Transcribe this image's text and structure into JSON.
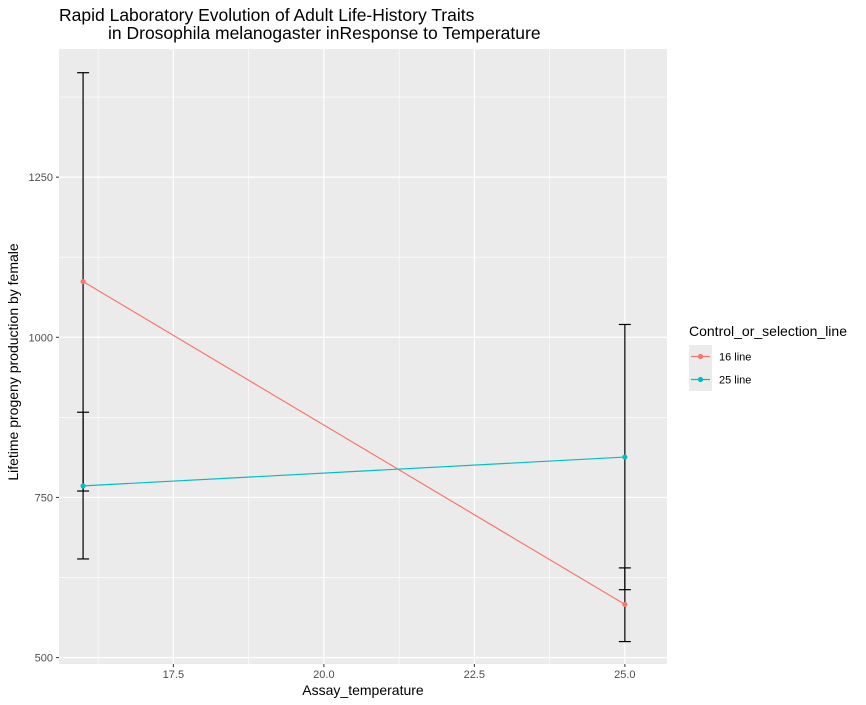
{
  "chart_data": {
    "type": "line",
    "title_lines": [
      "Rapid Laboratory Evolution of Adult Life-History Traits",
      "in Drosophila melanogaster inResponse to Temperature"
    ],
    "xlabel": "Assay_temperature",
    "ylabel": "Lifetime progeny  production by female",
    "xlim": [
      15.6,
      25.7
    ],
    "ylim": [
      490,
      1450
    ],
    "x_ticks": [
      17.5,
      20.0,
      22.5,
      25.0
    ],
    "x_tick_labels": [
      "17.5",
      "20.0",
      "22.5",
      "25.0"
    ],
    "y_ticks": [
      500,
      750,
      1000,
      1250
    ],
    "y_tick_labels": [
      "500",
      "750",
      "1000",
      "1250"
    ],
    "grid": true,
    "legend": {
      "title": "Control_or_selection_line",
      "placement": "right"
    },
    "series": [
      {
        "name": "16 line",
        "color": "#f8766d",
        "x": [
          16,
          25
        ],
        "y": [
          1087,
          583
        ],
        "err_low": [
          760,
          525
        ],
        "err_high": [
          1413,
          640
        ]
      },
      {
        "name": "25 line",
        "color": "#00bfc4",
        "x": [
          16,
          25
        ],
        "y": [
          768,
          813
        ],
        "err_low": [
          654,
          606
        ],
        "err_high": [
          883,
          1020
        ]
      }
    ]
  }
}
